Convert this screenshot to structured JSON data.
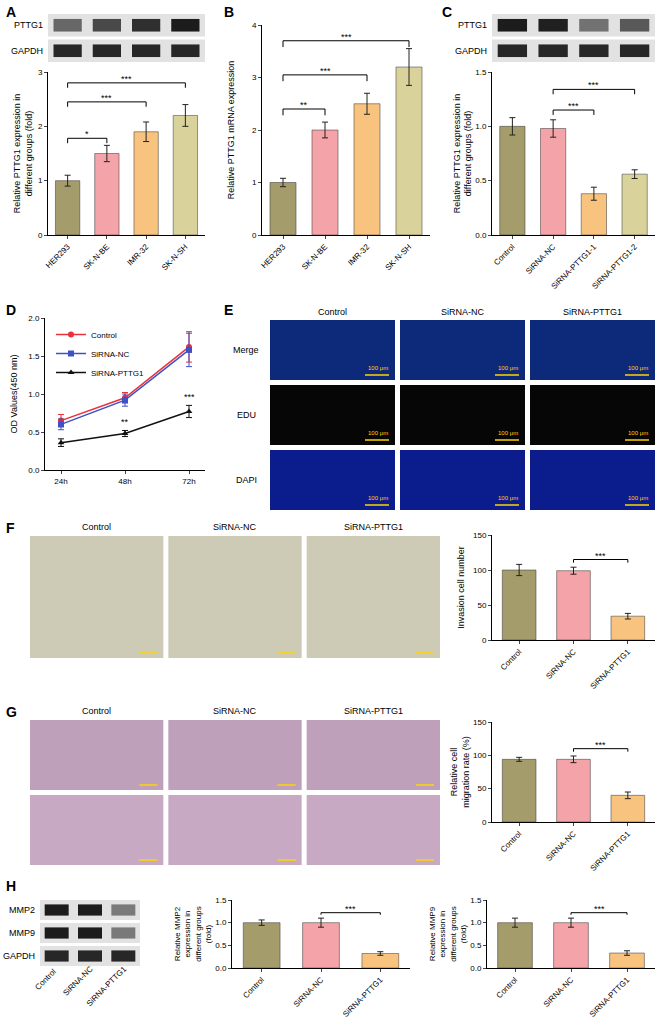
{
  "chart_data": [
    {
      "panel": "A",
      "type": "bar",
      "blot": [
        "PTTG1",
        "GAPDH"
      ],
      "categories": [
        "HER293",
        "SK-N-BE",
        "IMR-32",
        "SK-N-SH"
      ],
      "values": [
        1.0,
        1.5,
        1.9,
        2.2
      ],
      "errors": [
        0.1,
        0.15,
        0.18,
        0.2
      ],
      "colors": [
        "#a59c6c",
        "#f4a3a8",
        "#f7c37f",
        "#d9d39b"
      ],
      "ylabel": "Relative PTTG1 expression in different groups (fold)",
      "ylim": [
        0,
        3
      ],
      "yticks": [
        0,
        1,
        2,
        3
      ],
      "significance": [
        {
          "from": "HER293",
          "to": "SK-N-BE",
          "y": 1.78,
          "label": "*"
        },
        {
          "from": "HER293",
          "to": "IMR-32",
          "y": 2.45,
          "label": "***"
        },
        {
          "from": "HER293",
          "to": "SK-N-SH",
          "y": 2.8,
          "label": "***"
        }
      ]
    },
    {
      "panel": "B",
      "type": "bar",
      "categories": [
        "HER293",
        "SK-N-BE",
        "IMR-32",
        "SK-N-SH"
      ],
      "values": [
        1.0,
        2.0,
        2.5,
        3.2
      ],
      "errors": [
        0.08,
        0.15,
        0.2,
        0.35
      ],
      "colors": [
        "#a59c6c",
        "#f4a3a8",
        "#f7c37f",
        "#d9d39b"
      ],
      "ylabel": "Relative PTTG1 mRNA expression",
      "ylim": [
        0,
        4
      ],
      "yticks": [
        0,
        1,
        2,
        3,
        4
      ],
      "significance": [
        {
          "from": "HER293",
          "to": "SK-N-BE",
          "y": 2.4,
          "label": "**"
        },
        {
          "from": "HER293",
          "to": "IMR-32",
          "y": 3.05,
          "label": "***"
        },
        {
          "from": "HER293",
          "to": "SK-N-SH",
          "y": 3.7,
          "label": "***"
        }
      ]
    },
    {
      "panel": "C",
      "type": "bar",
      "blot": [
        "PTTG1",
        "GAPDH"
      ],
      "categories": [
        "Control",
        "SiRNA-NC",
        "SiRNA-PTTG1-1",
        "SiRNA-PTTG1-2"
      ],
      "values": [
        1.0,
        0.98,
        0.38,
        0.56
      ],
      "errors": [
        0.08,
        0.08,
        0.06,
        0.04
      ],
      "colors": [
        "#a59c6c",
        "#f4a3a8",
        "#f7c37f",
        "#d9d39b"
      ],
      "ylabel": "Relative PTTG1 expression in different groups (fold)",
      "ylim": [
        0,
        1.5
      ],
      "yticks": [
        {
          "value": 0,
          "label": "0.0"
        },
        {
          "value": 0.5,
          "label": "0.5"
        },
        {
          "value": 1,
          "label": "1.0"
        },
        {
          "value": 1.5,
          "label": "1.5"
        }
      ],
      "significance": [
        {
          "from": "SiRNA-NC",
          "to": "SiRNA-PTTG1-1",
          "y": 1.15,
          "label": "***"
        },
        {
          "from": "SiRNA-NC",
          "to": "SiRNA-PTTG1-2",
          "y": 1.34,
          "label": "***"
        }
      ]
    },
    {
      "panel": "D",
      "type": "line",
      "categories": [
        "24h",
        "48h",
        "72h"
      ],
      "series": [
        {
          "name": "Control",
          "color": "#e8313a",
          "marker": "circle",
          "values": [
            0.65,
            0.95,
            1.62
          ],
          "errors": [
            0.08,
            0.07,
            0.2
          ]
        },
        {
          "name": "SiRNA-NC",
          "color": "#3f51c6",
          "marker": "square",
          "values": [
            0.6,
            0.92,
            1.58
          ],
          "errors": [
            0.07,
            0.08,
            0.22
          ]
        },
        {
          "name": "SiRNA-PTTG1",
          "color": "#111111",
          "marker": "triangle-up",
          "values": [
            0.36,
            0.48,
            0.77
          ],
          "errors": [
            0.05,
            0.04,
            0.08
          ]
        }
      ],
      "ylabel": "OD Values(450 nm)",
      "ylim": [
        0,
        2
      ],
      "yticks": [
        {
          "value": 0,
          "label": "0.0"
        },
        {
          "value": 0.5,
          "label": "0.5"
        },
        {
          "value": 1,
          "label": "1.0"
        },
        {
          "value": 1.5,
          "label": "1.5"
        },
        {
          "value": 2,
          "label": "2.0"
        }
      ],
      "legend": "upper left",
      "annotations": [
        {
          "x": "48h",
          "y": 0.56,
          "text": "**"
        },
        {
          "x": "72h",
          "y": 0.89,
          "text": "***"
        }
      ]
    },
    {
      "panel": "F",
      "type": "bar",
      "categories": [
        "Control",
        "SiRNA-NC",
        "SiRNA-PTTG1"
      ],
      "values": [
        100,
        99,
        34
      ],
      "errors": [
        8,
        5,
        4
      ],
      "colors": [
        "#a59c6c",
        "#f4a3a8",
        "#f7c37f"
      ],
      "ylabel": "Invasion cell number",
      "ylim": [
        0,
        150
      ],
      "yticks": [
        0,
        50,
        100,
        150
      ],
      "significance": [
        {
          "from": "SiRNA-NC",
          "to": "SiRNA-PTTG1",
          "y": 115,
          "label": "***"
        }
      ]
    },
    {
      "panel": "G",
      "type": "bar",
      "categories": [
        "Control",
        "SiRNA-NC",
        "SiRNA-PTTG1"
      ],
      "values": [
        94,
        94,
        40
      ],
      "errors": [
        3,
        5,
        5
      ],
      "colors": [
        "#a59c6c",
        "#f4a3a8",
        "#f7c37f"
      ],
      "ylabel": "Relative cell migration rate (%)",
      "ylim": [
        0,
        150
      ],
      "yticks": [
        0,
        50,
        100,
        150
      ],
      "significance": [
        {
          "from": "SiRNA-NC",
          "to": "SiRNA-PTTG1",
          "y": 110,
          "label": "***"
        }
      ]
    },
    {
      "panel": "H",
      "type": "bar",
      "categories": [
        "Control",
        "SiRNA-NC",
        "SiRNA-PTTG1"
      ],
      "values": [
        1.0,
        1.0,
        0.32
      ],
      "errors": [
        0.06,
        0.1,
        0.04
      ],
      "colors": [
        "#a59c6c",
        "#f4a3a8",
        "#f7c37f"
      ],
      "ylabel": "Relative MMP2 expression in different groups (fold)",
      "ylim": [
        0,
        1.5
      ],
      "yticks": [
        {
          "value": 0,
          "label": "0.0"
        },
        {
          "value": 0.5,
          "label": "0.5"
        },
        {
          "value": 1,
          "label": "1.0"
        },
        {
          "value": 1.5,
          "label": "1.5"
        }
      ],
      "significance": [
        {
          "from": "SiRNA-NC",
          "to": "SiRNA-PTTG1",
          "y": 1.22,
          "label": "***"
        }
      ]
    },
    {
      "panel": "H",
      "type": "bar",
      "categories": [
        "Control",
        "SiRNA-NC",
        "SiRNA-PTTG1"
      ],
      "values": [
        1.0,
        1.0,
        0.33
      ],
      "errors": [
        0.1,
        0.1,
        0.05
      ],
      "colors": [
        "#a59c6c",
        "#f4a3a8",
        "#f7c37f"
      ],
      "ylabel": "Relative MMP9 expression in different groups (fold)",
      "ylim": [
        0,
        1.5
      ],
      "yticks": [
        {
          "value": 0,
          "label": "0.0"
        },
        {
          "value": 0.5,
          "label": "0.5"
        },
        {
          "value": 1,
          "label": "1.0"
        },
        {
          "value": 1.5,
          "label": "1.5"
        }
      ],
      "significance": [
        {
          "from": "SiRNA-NC",
          "to": "SiRNA-PTTG1",
          "y": 1.22,
          "label": "***"
        }
      ]
    }
  ],
  "images": [
    {
      "panel": "E",
      "columns": [
        "Control",
        "SiRNA-NC",
        "SiRNA-PTTG1"
      ],
      "rows": [
        "Merge",
        "EDU",
        "DAPI"
      ],
      "scale_bar": "100 μm"
    },
    {
      "panel": "F",
      "columns": [
        "Control",
        "SiRNA-NC",
        "SiRNA-PTTG1"
      ],
      "rows": [
        null
      ]
    },
    {
      "panel": "G",
      "columns": [
        "Control",
        "SiRNA-NC",
        "SiRNA-PTTG1"
      ],
      "rows": [
        null,
        null
      ]
    }
  ],
  "blots": [
    {
      "panel": "H",
      "rows": [
        "MMP2",
        "MMP9",
        "GAPDH"
      ],
      "lanes": [
        "Control",
        "SiRNA-NC",
        "SiRNA-PTTG1"
      ]
    }
  ]
}
